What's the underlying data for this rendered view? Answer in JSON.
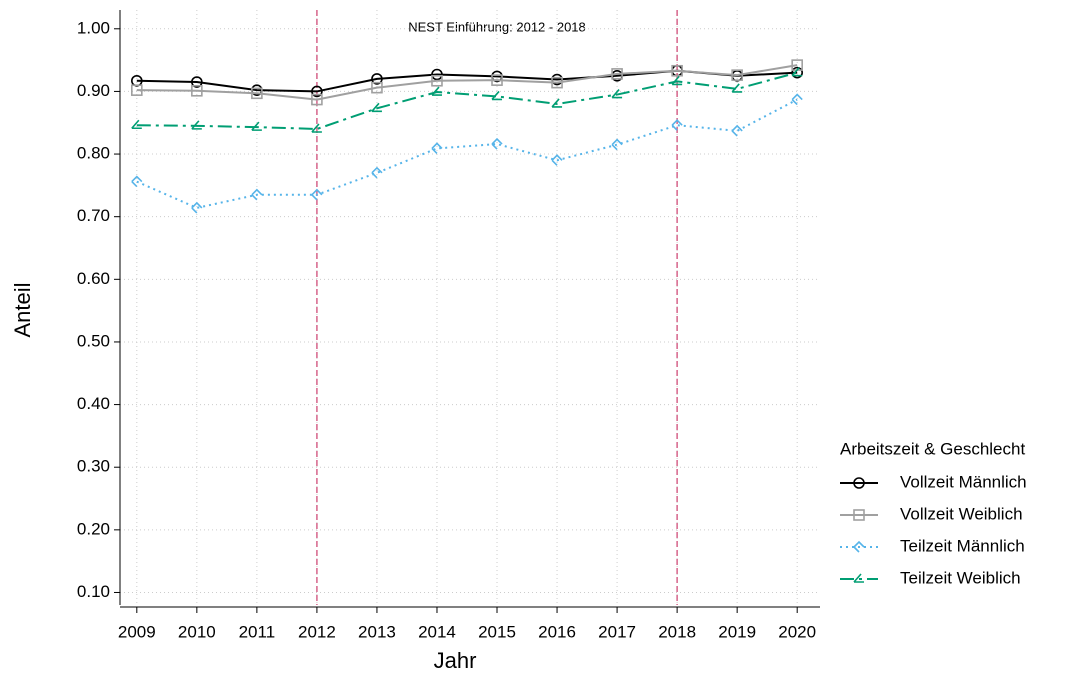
{
  "chart_data": {
    "type": "line",
    "annotation": "NEST Einführung: 2012 - 2018",
    "x_label": "Jahr",
    "y_label": "Anteil",
    "x": [
      2009,
      2010,
      2011,
      2012,
      2013,
      2014,
      2015,
      2016,
      2017,
      2018,
      2019,
      2020
    ],
    "xlim": [
      2008.72,
      2020.38
    ],
    "xticks": [
      2009,
      2010,
      2011,
      2012,
      2013,
      2014,
      2015,
      2016,
      2017,
      2018,
      2019,
      2020
    ],
    "ylim": [
      0.08,
      1.03
    ],
    "yticks": [
      {
        "value": 0.1,
        "label": "0.10"
      },
      {
        "value": 0.2,
        "label": "0.20"
      },
      {
        "value": 0.3,
        "label": "0.30"
      },
      {
        "value": 0.4,
        "label": "0.40"
      },
      {
        "value": 0.5,
        "label": "0.50"
      },
      {
        "value": 0.6,
        "label": "0.60"
      },
      {
        "value": 0.7,
        "label": "0.70"
      },
      {
        "value": 0.8,
        "label": "0.80"
      },
      {
        "value": 0.9,
        "label": "0.90"
      },
      {
        "value": 1.0,
        "label": "1.00"
      }
    ],
    "grid": true,
    "vlines": [
      2012,
      2018
    ],
    "vline_color": "#d6648a",
    "legend_title": "Arbeitszeit & Geschlecht",
    "legend_position": "right",
    "series": [
      {
        "name": "Vollzeit Männlich",
        "color": "#000000",
        "marker": "circle",
        "dash": "solid",
        "values": [
          0.917,
          0.915,
          0.902,
          0.9,
          0.92,
          0.927,
          0.924,
          0.919,
          0.925,
          0.933,
          0.925,
          0.93
        ]
      },
      {
        "name": "Vollzeit Weiblich",
        "color": "#a0a0a0",
        "marker": "square",
        "dash": "solid",
        "values": [
          0.902,
          0.901,
          0.897,
          0.887,
          0.906,
          0.917,
          0.918,
          0.914,
          0.928,
          0.933,
          0.926,
          0.942
        ]
      },
      {
        "name": "Teilzeit Männlich",
        "color": "#56b4e9",
        "marker": "diamond",
        "dash": "dotted",
        "values": [
          0.756,
          0.714,
          0.735,
          0.735,
          0.77,
          0.809,
          0.816,
          0.79,
          0.815,
          0.846,
          0.837,
          0.887
        ]
      },
      {
        "name": "Teilzeit Weiblich",
        "color": "#009e73",
        "marker": "triangle",
        "dash": "dashed",
        "values": [
          0.846,
          0.845,
          0.843,
          0.84,
          0.873,
          0.899,
          0.892,
          0.88,
          0.895,
          0.916,
          0.904,
          0.93
        ]
      }
    ]
  }
}
